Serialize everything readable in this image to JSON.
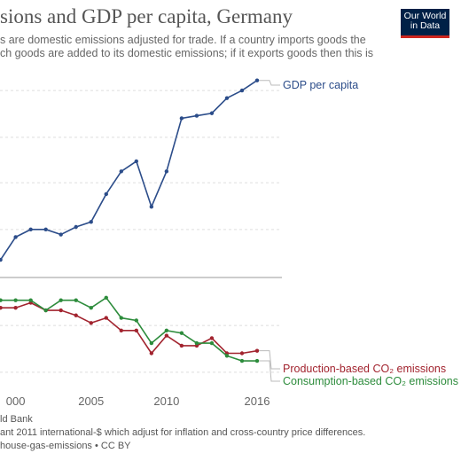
{
  "header": {
    "title": "sions and GDP per capita, Germany",
    "subtitle_line1": "s are domestic emissions adjusted for trade. If a country imports goods the",
    "subtitle_line2": "ch goods are added to its domestic emissions; if it exports goods then this is"
  },
  "logo": {
    "line1": "Our World",
    "line2": "in Data",
    "bg_color": "#002147",
    "accent_color": "#ce261e"
  },
  "footer": {
    "line1": "ld Bank",
    "line2": "ant 2011 international-$ which adjust for inflation and cross-country price differences.",
    "line3": "house-gas-emissions • CC BY"
  },
  "chart_data": {
    "type": "line",
    "title": "sions and GDP per capita, Germany",
    "xlabel": "",
    "ylabel": "",
    "x_ticks": [
      "000",
      "2005",
      "2010",
      "2016"
    ],
    "xlim": [
      1999.2,
      2016.2
    ],
    "grid": true,
    "legend_placement": "right (labels at line ends)",
    "note": "values are relative (indexed) since the y-axis labels are not visible in the crop",
    "series": [
      {
        "name": "GDP per capita",
        "color": "#2c4d8a",
        "points": [
          [
            1999,
            0.07
          ],
          [
            2000,
            0.16
          ],
          [
            2001,
            0.19
          ],
          [
            2002,
            0.19
          ],
          [
            2003,
            0.17
          ],
          [
            2004,
            0.2
          ],
          [
            2005,
            0.22
          ],
          [
            2006,
            0.33
          ],
          [
            2007,
            0.42
          ],
          [
            2008,
            0.46
          ],
          [
            2009,
            0.28
          ],
          [
            2010,
            0.42
          ],
          [
            2011,
            0.63
          ],
          [
            2012,
            0.64
          ],
          [
            2013,
            0.65
          ],
          [
            2014,
            0.71
          ],
          [
            2015,
            0.74
          ],
          [
            2016,
            0.78
          ]
        ]
      },
      {
        "name": "Production-based CO₂ emissions",
        "color": "#a2242f",
        "points": [
          [
            1999,
            -0.12
          ],
          [
            2000,
            -0.12
          ],
          [
            2001,
            -0.1
          ],
          [
            2002,
            -0.13
          ],
          [
            2003,
            -0.13
          ],
          [
            2004,
            -0.15
          ],
          [
            2005,
            -0.18
          ],
          [
            2006,
            -0.16
          ],
          [
            2007,
            -0.21
          ],
          [
            2008,
            -0.21
          ],
          [
            2009,
            -0.3
          ],
          [
            2010,
            -0.23
          ],
          [
            2011,
            -0.27
          ],
          [
            2012,
            -0.27
          ],
          [
            2013,
            -0.24
          ],
          [
            2014,
            -0.3
          ],
          [
            2015,
            -0.3
          ],
          [
            2016,
            -0.29
          ]
        ]
      },
      {
        "name": "Consumption-based CO₂ emissions",
        "color": "#2d8c3c",
        "points": [
          [
            1999,
            -0.09
          ],
          [
            2000,
            -0.09
          ],
          [
            2001,
            -0.09
          ],
          [
            2002,
            -0.13
          ],
          [
            2003,
            -0.09
          ],
          [
            2004,
            -0.09
          ],
          [
            2005,
            -0.12
          ],
          [
            2006,
            -0.08
          ],
          [
            2007,
            -0.16
          ],
          [
            2008,
            -0.17
          ],
          [
            2009,
            -0.26
          ],
          [
            2010,
            -0.21
          ],
          [
            2011,
            -0.22
          ],
          [
            2012,
            -0.26
          ],
          [
            2013,
            -0.26
          ],
          [
            2014,
            -0.31
          ],
          [
            2015,
            -0.33
          ],
          [
            2016,
            -0.33
          ]
        ]
      }
    ]
  }
}
